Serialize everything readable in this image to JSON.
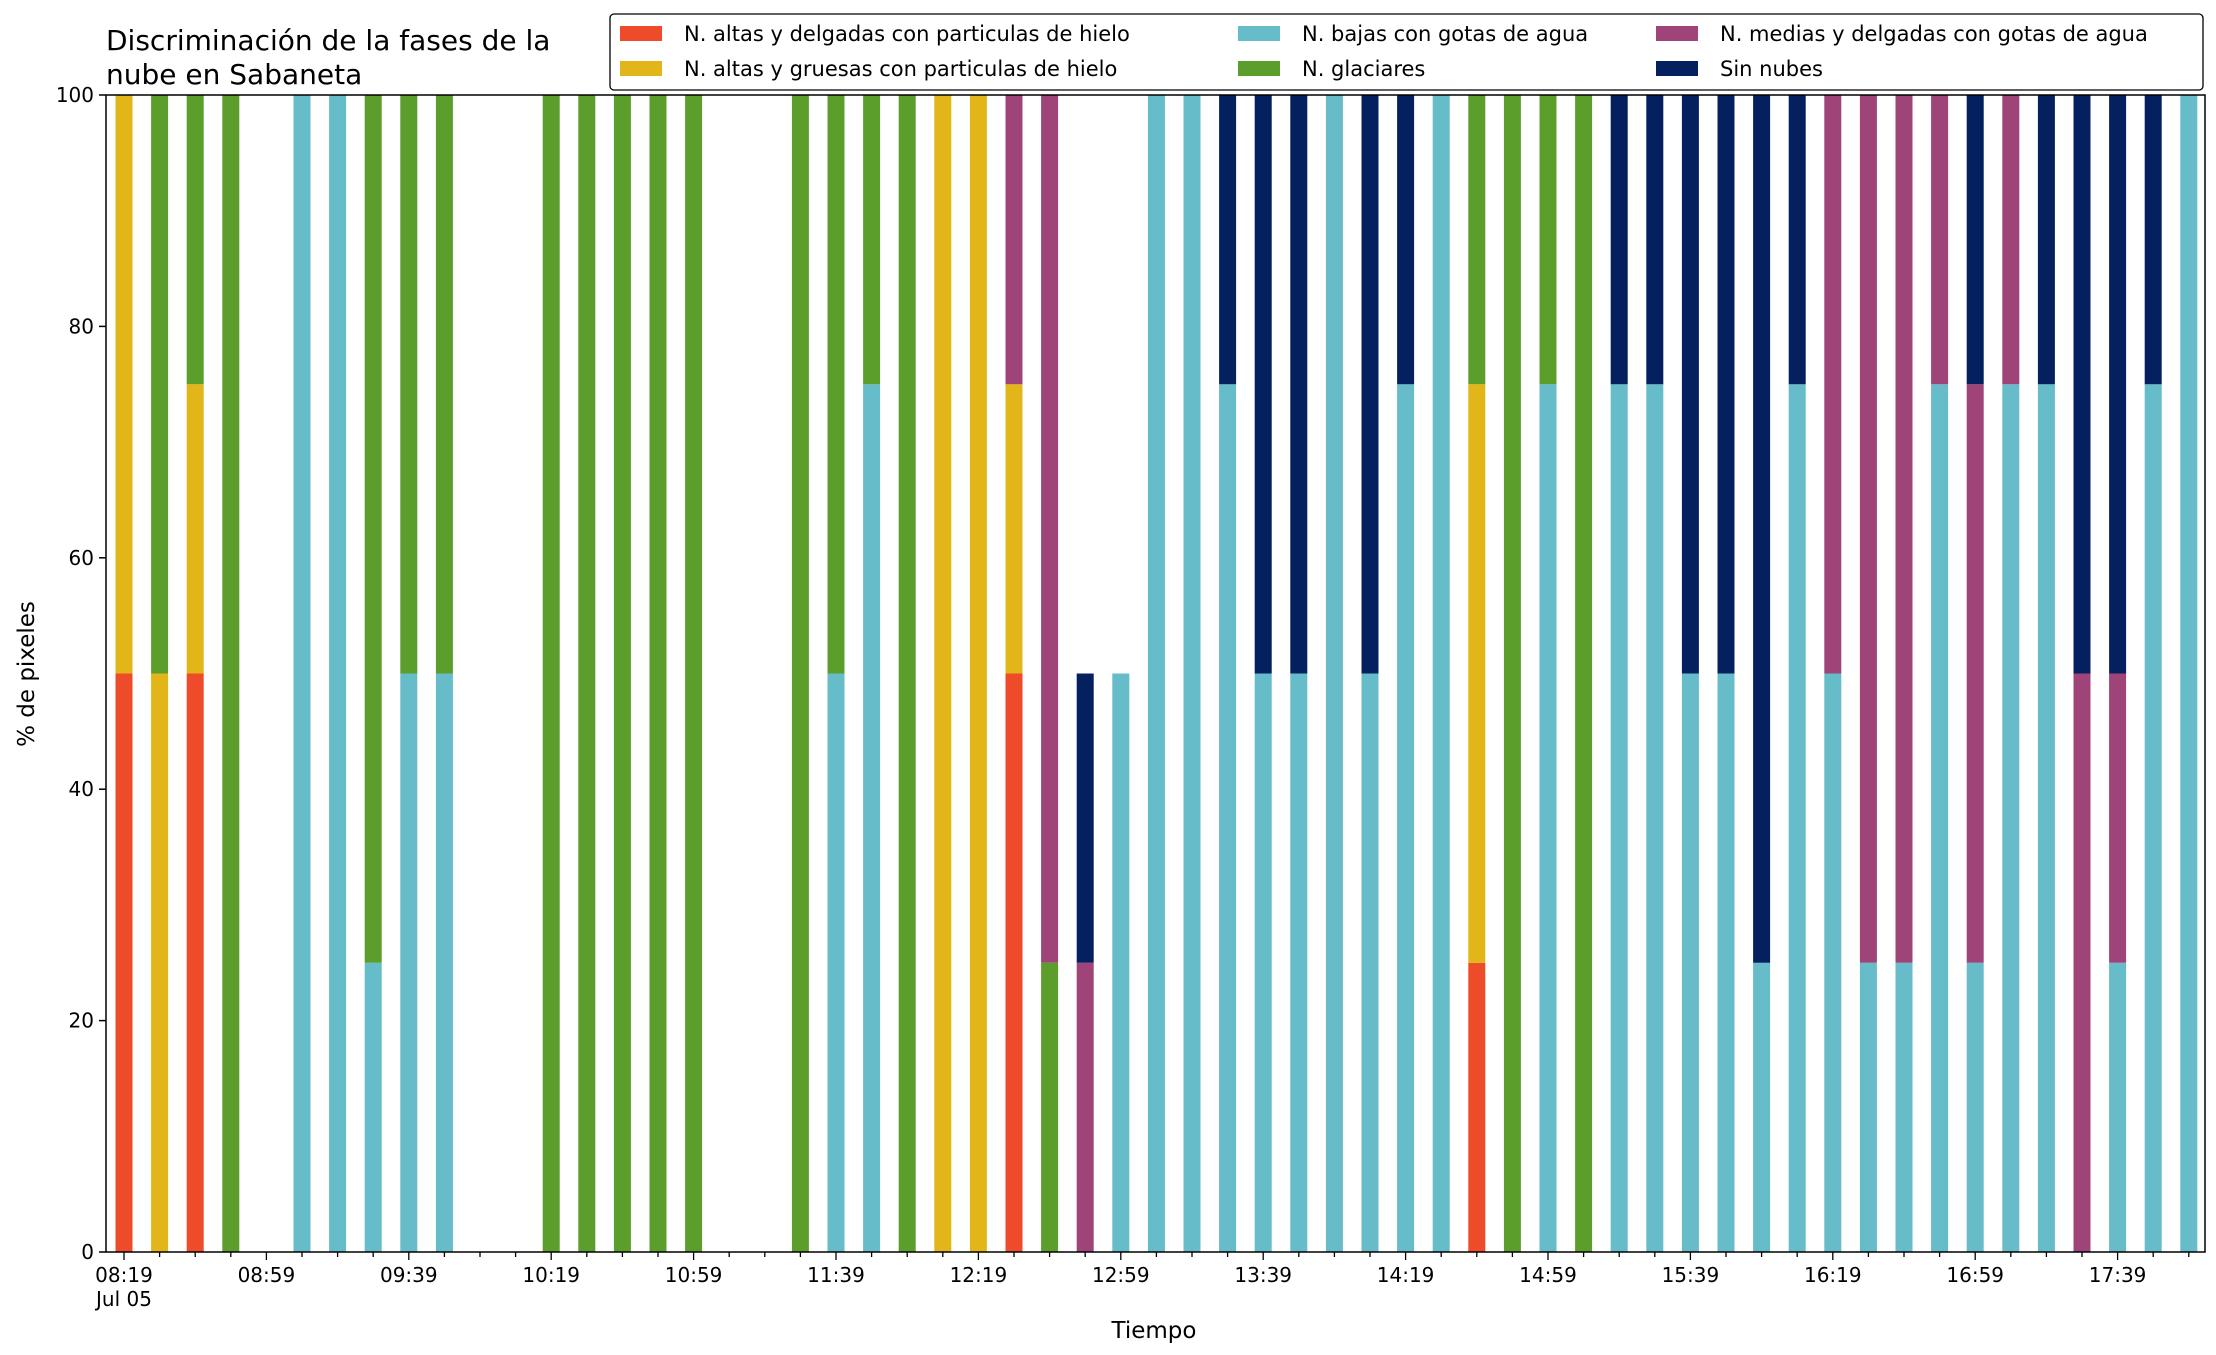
{
  "chart_data": {
    "type": "bar",
    "stacked": true,
    "title_line1": "Discriminación de la fases de la",
    "title_line2": "nube en Sabaneta",
    "xlabel": "Tiempo",
    "ylabel": "% de pixeles",
    "ylim": [
      0,
      100
    ],
    "yticks": [
      0,
      20,
      40,
      60,
      80,
      100
    ],
    "xtick_labels": [
      "08:19",
      "08:59",
      "09:39",
      "10:19",
      "10:59",
      "11:39",
      "12:19",
      "12:59",
      "13:39",
      "14:19",
      "14:59",
      "15:39",
      "16:19",
      "16:59",
      "17:39"
    ],
    "xtick_sublabel": "Jul 05",
    "x_start": "08:19",
    "x_step_minutes": 10,
    "x_count": 59,
    "legend_position": "top-right",
    "grid": false,
    "series": [
      {
        "name": "N. altas y delgadas con particulas de hielo",
        "color": "#ee4b2b",
        "values": [
          50,
          0,
          50,
          0,
          0,
          0,
          0,
          0,
          0,
          0,
          0,
          0,
          0,
          0,
          0,
          0,
          0,
          0,
          0,
          0,
          0,
          0,
          0,
          0,
          0,
          50,
          0,
          0,
          0,
          0,
          0,
          0,
          0,
          0,
          0,
          0,
          0,
          0,
          25,
          0,
          0,
          0,
          0,
          0,
          0,
          0,
          0,
          0,
          0,
          0,
          0,
          0,
          0,
          0,
          0,
          0,
          0,
          0,
          0
        ]
      },
      {
        "name": "N. altas y gruesas con particulas de hielo",
        "color": "#e2b619",
        "values": [
          50,
          50,
          25,
          0,
          0,
          0,
          0,
          0,
          0,
          0,
          0,
          0,
          0,
          0,
          0,
          0,
          0,
          0,
          0,
          0,
          0,
          0,
          0,
          100,
          100,
          25,
          0,
          0,
          0,
          0,
          0,
          0,
          0,
          0,
          0,
          0,
          0,
          0,
          50,
          0,
          0,
          0,
          0,
          0,
          0,
          0,
          0,
          0,
          0,
          0,
          0,
          0,
          0,
          0,
          0,
          0,
          0,
          0,
          0
        ]
      },
      {
        "name": "N. bajas con gotas de agua",
        "color": "#66bcc8",
        "values": [
          0,
          0,
          0,
          0,
          0,
          100,
          100,
          25,
          50,
          50,
          0,
          0,
          0,
          0,
          0,
          0,
          0,
          0,
          0,
          0,
          50,
          75,
          0,
          0,
          0,
          0,
          0,
          0,
          50,
          100,
          100,
          75,
          50,
          50,
          100,
          50,
          75,
          100,
          0,
          0,
          75,
          0,
          75,
          75,
          50,
          50,
          25,
          75,
          50,
          25,
          25,
          75,
          25,
          75,
          75,
          0,
          25,
          75,
          100
        ]
      },
      {
        "name": "N. glaciares",
        "color": "#5c9e2b",
        "values": [
          0,
          50,
          25,
          100,
          0,
          0,
          0,
          75,
          50,
          50,
          0,
          0,
          100,
          100,
          100,
          100,
          100,
          0,
          0,
          100,
          50,
          25,
          100,
          0,
          0,
          0,
          25,
          0,
          0,
          0,
          0,
          0,
          0,
          0,
          0,
          0,
          0,
          0,
          25,
          100,
          25,
          100,
          0,
          0,
          0,
          0,
          0,
          0,
          0,
          0,
          0,
          0,
          0,
          0,
          0,
          0,
          0,
          0,
          0
        ]
      },
      {
        "name": "N. medias y delgadas con gotas de agua",
        "color": "#9e4478",
        "values": [
          0,
          0,
          0,
          0,
          0,
          0,
          0,
          0,
          0,
          0,
          0,
          0,
          0,
          0,
          0,
          0,
          0,
          0,
          0,
          0,
          0,
          0,
          0,
          0,
          0,
          25,
          75,
          25,
          0,
          0,
          0,
          0,
          0,
          0,
          0,
          0,
          0,
          0,
          0,
          0,
          0,
          0,
          0,
          0,
          0,
          0,
          0,
          0,
          50,
          75,
          75,
          25,
          50,
          25,
          0,
          50,
          25,
          0,
          0
        ]
      },
      {
        "name": "Sin nubes",
        "color": "#04205e",
        "values": [
          0,
          0,
          0,
          0,
          0,
          0,
          0,
          0,
          0,
          0,
          0,
          0,
          0,
          0,
          0,
          0,
          0,
          0,
          0,
          0,
          0,
          0,
          0,
          0,
          0,
          0,
          0,
          25,
          0,
          0,
          0,
          25,
          50,
          50,
          0,
          50,
          25,
          0,
          0,
          0,
          0,
          0,
          25,
          25,
          50,
          50,
          75,
          25,
          0,
          0,
          0,
          0,
          25,
          0,
          25,
          50,
          50,
          25,
          0
        ]
      }
    ]
  }
}
